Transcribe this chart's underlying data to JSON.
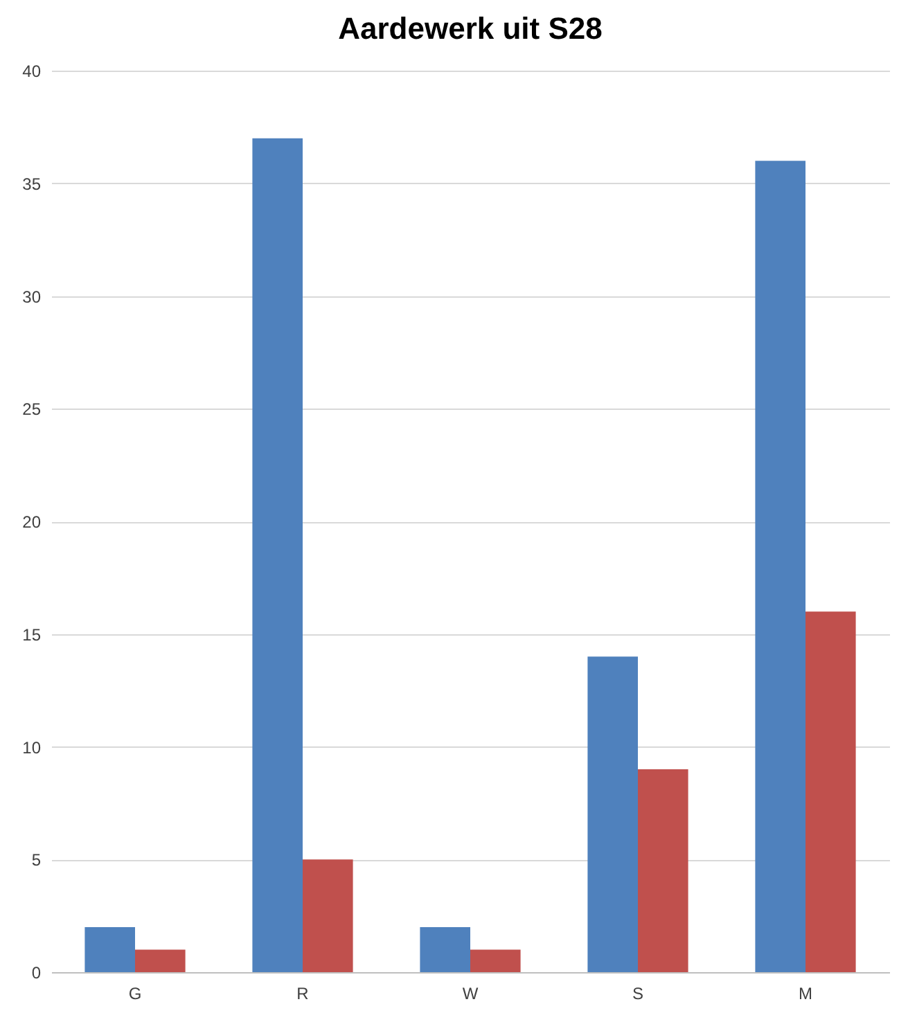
{
  "chart_data": {
    "type": "bar",
    "title": "Aardewerk uit S28",
    "categories": [
      "G",
      "R",
      "W",
      "S",
      "M"
    ],
    "series": [
      {
        "color": "#4f81bd",
        "values": [
          2,
          37,
          2,
          14,
          36
        ]
      },
      {
        "color": "#c0504d",
        "values": [
          1,
          5,
          1,
          9,
          16
        ]
      }
    ],
    "ylim": [
      0,
      40
    ],
    "yticks": [
      0,
      5,
      10,
      15,
      20,
      25,
      30,
      35,
      40
    ],
    "grid": "y",
    "legend": false
  }
}
